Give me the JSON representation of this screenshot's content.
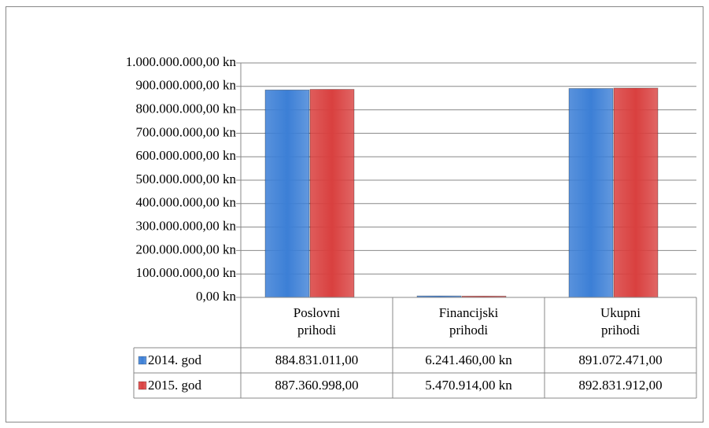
{
  "chart_data": {
    "type": "bar",
    "categories": [
      "Poslovni prihodi",
      "Financijski prihodi",
      "Ukupni prihodi"
    ],
    "series": [
      {
        "name": "2014. god",
        "color": "#3c7fd6",
        "values": [
          884831011,
          6241460,
          891072471
        ],
        "value_labels": [
          "884.831.011,00",
          "6.241.460,00 kn",
          "891.072.471,00"
        ]
      },
      {
        "name": "2015. god",
        "color": "#d9403f",
        "values": [
          887360998,
          5470914,
          892831912
        ],
        "value_labels": [
          "887.360.998,00",
          "5.470.914,00 kn",
          "892.831.912,00"
        ]
      }
    ],
    "ylim": [
      0,
      1000000000
    ],
    "yticks": [
      {
        "value": 0,
        "label": "0,00 kn"
      },
      {
        "value": 100000000,
        "label": "100.000.000,00 kn"
      },
      {
        "value": 200000000,
        "label": "200.000.000,00 kn"
      },
      {
        "value": 300000000,
        "label": "300.000.000,00 kn"
      },
      {
        "value": 400000000,
        "label": "400.000.000,00 kn"
      },
      {
        "value": 500000000,
        "label": "500.000.000,00 kn"
      },
      {
        "value": 600000000,
        "label": "600.000.000,00 kn"
      },
      {
        "value": 700000000,
        "label": "700.000.000,00 kn"
      },
      {
        "value": 800000000,
        "label": "800.000.000,00 kn"
      },
      {
        "value": 900000000,
        "label": "900.000.000,00 kn"
      },
      {
        "value": 1000000000,
        "label": "1.000.000.000,00 kn"
      }
    ],
    "grid": true
  }
}
